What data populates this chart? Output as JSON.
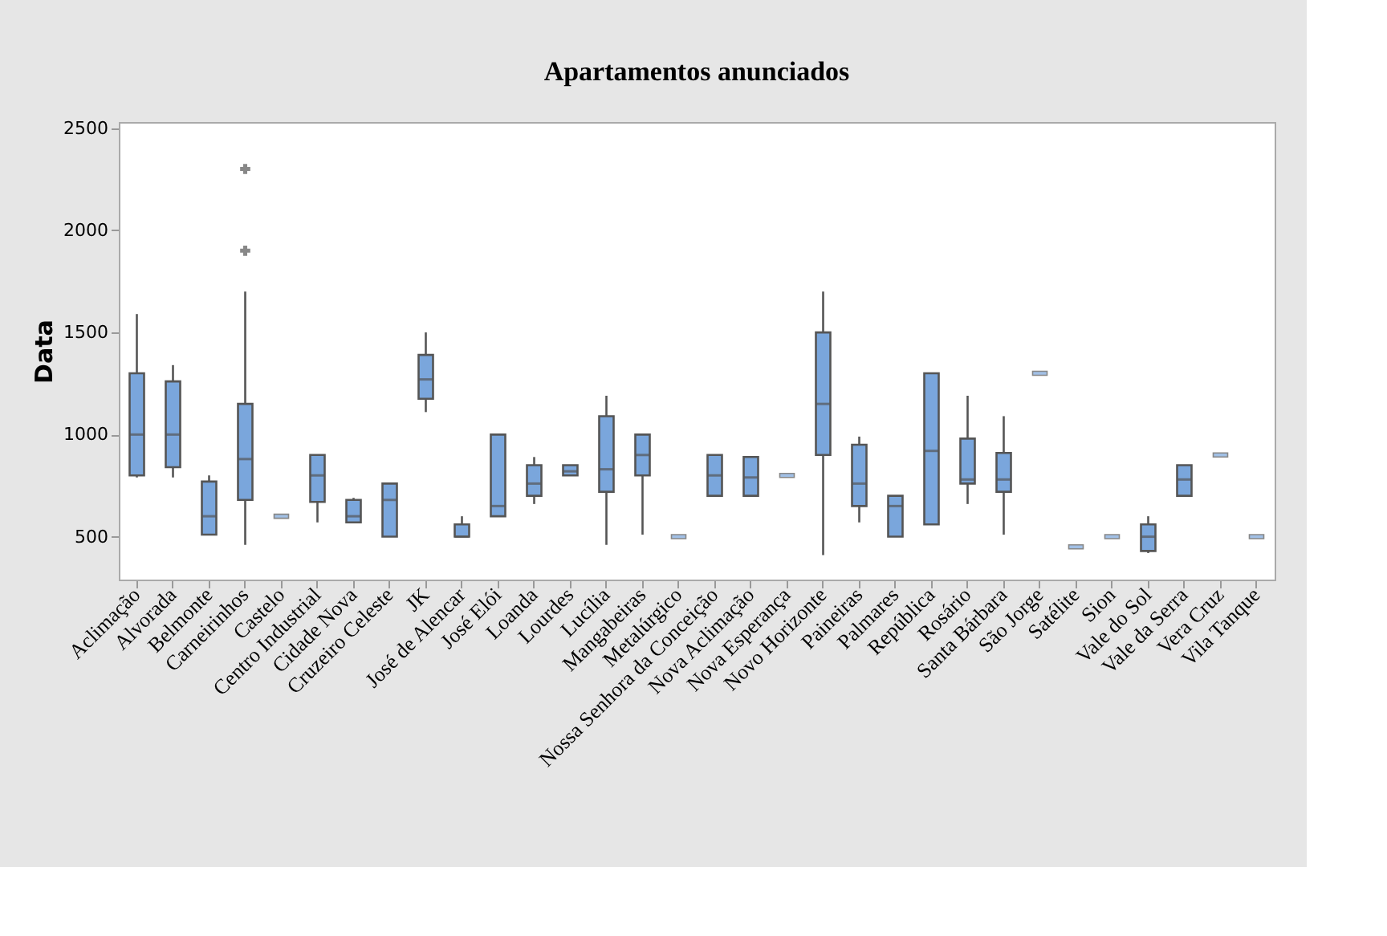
{
  "chart_data": {
    "type": "box",
    "title": "Apartamentos anunciados",
    "ylabel": "Data",
    "categories": [
      "Aclimação",
      "Alvorada",
      "Belmonte",
      "Carneirinhos",
      "Castelo",
      "Centro Industrial",
      "Cidade Nova",
      "Cruzeiro Celeste",
      "JK",
      "José de Alencar",
      "José Elói",
      "Loanda",
      "Lourdes",
      "Lucília",
      "Mangabeiras",
      "Metalúrgico",
      "Nossa Senhora da Conceição",
      "Nova Aclimação",
      "Nova Esperança",
      "Novo Horizonte",
      "Paineiras",
      "Palmares",
      "República",
      "Rosário",
      "Santa Bárbara",
      "São Jorge",
      "Satélite",
      "Sion",
      "Vale do Sol",
      "Vale da Serra",
      "Vera Cruz",
      "Vila Tanque"
    ],
    "ylim": [
      290,
      2530
    ],
    "yticks": [
      500,
      1000,
      1500,
      2000,
      2500
    ],
    "grid": false,
    "series": [
      {
        "color": "#7aa6dc",
        "boxes": [
          {
            "low": 790,
            "q1": 800,
            "median": 1000,
            "q3": 1300,
            "high": 1590
          },
          {
            "low": 790,
            "q1": 840,
            "median": 1000,
            "q3": 1260,
            "high": 1340
          },
          {
            "low": 510,
            "q1": 510,
            "median": 600,
            "q3": 770,
            "high": 800
          },
          {
            "low": 460,
            "q1": 680,
            "median": 880,
            "q3": 1150,
            "high": 1700,
            "outliers": [
              1900,
              2300
            ]
          },
          {
            "low": 600,
            "q1": 600,
            "median": 600,
            "q3": 600,
            "high": 600
          },
          {
            "low": 570,
            "q1": 670,
            "median": 800,
            "q3": 900,
            "high": 900
          },
          {
            "low": 570,
            "q1": 570,
            "median": 600,
            "q3": 680,
            "high": 690
          },
          {
            "low": 500,
            "q1": 500,
            "median": 680,
            "q3": 760,
            "high": 760
          },
          {
            "low": 1110,
            "q1": 1175,
            "median": 1270,
            "q3": 1390,
            "high": 1500
          },
          {
            "low": 500,
            "q1": 500,
            "median": 500,
            "q3": 560,
            "high": 600
          },
          {
            "low": 600,
            "q1": 600,
            "median": 650,
            "q3": 1000,
            "high": 1000
          },
          {
            "low": 660,
            "q1": 700,
            "median": 760,
            "q3": 850,
            "high": 890
          },
          {
            "low": 800,
            "q1": 800,
            "median": 820,
            "q3": 850,
            "high": 850
          },
          {
            "low": 460,
            "q1": 720,
            "median": 830,
            "q3": 1090,
            "high": 1190
          },
          {
            "low": 510,
            "q1": 800,
            "median": 900,
            "q3": 1000,
            "high": 1000
          },
          {
            "low": 500,
            "q1": 500,
            "median": 500,
            "q3": 500,
            "high": 500
          },
          {
            "low": 700,
            "q1": 700,
            "median": 800,
            "q3": 900,
            "high": 900
          },
          {
            "low": 700,
            "q1": 700,
            "median": 790,
            "q3": 890,
            "high": 890
          },
          {
            "low": 800,
            "q1": 800,
            "median": 800,
            "q3": 800,
            "high": 800
          },
          {
            "low": 410,
            "q1": 900,
            "median": 1150,
            "q3": 1500,
            "high": 1700
          },
          {
            "low": 570,
            "q1": 650,
            "median": 760,
            "q3": 950,
            "high": 990
          },
          {
            "low": 500,
            "q1": 500,
            "median": 650,
            "q3": 700,
            "high": 700
          },
          {
            "low": 560,
            "q1": 560,
            "median": 920,
            "q3": 1300,
            "high": 1300
          },
          {
            "low": 660,
            "q1": 760,
            "median": 780,
            "q3": 980,
            "high": 1190
          },
          {
            "low": 510,
            "q1": 720,
            "median": 780,
            "q3": 910,
            "high": 1090
          },
          {
            "low": 1300,
            "q1": 1300,
            "median": 1300,
            "q3": 1300,
            "high": 1300
          },
          {
            "low": 450,
            "q1": 450,
            "median": 450,
            "q3": 450,
            "high": 450
          },
          {
            "low": 500,
            "q1": 500,
            "median": 500,
            "q3": 500,
            "high": 500
          },
          {
            "low": 420,
            "q1": 430,
            "median": 500,
            "q3": 560,
            "high": 600
          },
          {
            "low": 700,
            "q1": 700,
            "median": 780,
            "q3": 850,
            "high": 850
          },
          {
            "low": 900,
            "q1": 900,
            "median": 900,
            "q3": 900,
            "high": 900
          },
          {
            "low": 500,
            "q1": 500,
            "median": 500,
            "q3": 500,
            "high": 500
          }
        ]
      }
    ]
  }
}
